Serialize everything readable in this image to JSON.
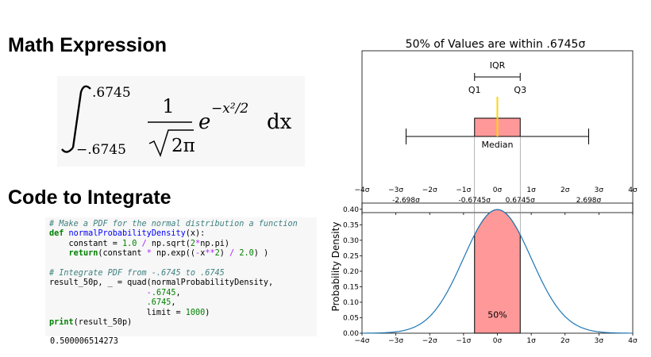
{
  "headings": {
    "math": "Math Expression",
    "code": "Code to Integrate"
  },
  "formula": {
    "upper_limit": ".6745",
    "lower_limit": "−.6745",
    "numerator": "1",
    "denominator": "2π",
    "exp_base": "e",
    "exponent": "−x²/2",
    "differential": "dx"
  },
  "code": {
    "lines": [
      "# Make a PDF for the normal distribution a function",
      "def normalProbabilityDensity(x):",
      "    constant = 1.0 / np.sqrt(2*np.pi)",
      "    return(constant * np.exp((-x**2) / 2.0) )",
      "",
      "# Integrate PDF from -.6745 to .6745",
      "result_50p, _ = quad(normalProbabilityDensity,",
      "                    -.6745,",
      "                    .6745,",
      "                    limit = 1000)",
      "print(result_50p)"
    ],
    "output": "0.500006514273"
  },
  "chart_data": [
    {
      "type": "boxplot",
      "title": "50% of Values are within .6745σ",
      "q1": -0.6745,
      "median": 0,
      "q3": 0.6745,
      "whisker_low": -2.698,
      "whisker_high": 2.698,
      "xlim": [
        -4,
        4
      ],
      "xticks": [
        -4,
        -3,
        -2,
        -1,
        0,
        1,
        2,
        3,
        4
      ],
      "xtick_labels": [
        "−4σ",
        "−3σ",
        "−2σ",
        "−1σ",
        "0σ",
        "1σ",
        "2σ",
        "3σ",
        "4σ"
      ],
      "annotations": {
        "iqr": "IQR",
        "q1": "Q1",
        "q3": "Q3",
        "median": "Median"
      },
      "colors": {
        "box": "#ff9999",
        "median": "#ffd700"
      }
    },
    {
      "type": "area",
      "series": [
        {
          "function": "standard normal PDF"
        }
      ],
      "shaded_range": [
        -0.6745,
        0.6745
      ],
      "shaded_label": "50%",
      "ylabel": "Probability Density",
      "xlim": [
        -4,
        4
      ],
      "ylim": [
        0,
        0.42
      ],
      "yticks": [
        0,
        0.05,
        0.1,
        0.15,
        0.2,
        0.25,
        0.3,
        0.35,
        0.4
      ],
      "ytick_labels": [
        "0.00",
        "0.05",
        "0.10",
        "0.15",
        "0.20",
        "0.25",
        "0.30",
        "0.35",
        "0.40"
      ],
      "xticks": [
        -4,
        -3,
        -2,
        -1,
        0,
        1,
        2,
        3,
        4
      ],
      "xtick_labels": [
        "−4σ",
        "−3σ",
        "−2σ",
        "−1σ",
        "0σ",
        "1σ",
        "2σ",
        "3σ",
        "4σ"
      ],
      "top_markers": [
        -2.698,
        -0.6745,
        0.6745,
        2.698
      ],
      "top_marker_labels": [
        "-2.698σ",
        "-0.6745σ",
        "0.6745σ",
        "2.698σ"
      ],
      "colors": {
        "curve": "#1f77b4",
        "fill": "#ff9999"
      }
    }
  ]
}
